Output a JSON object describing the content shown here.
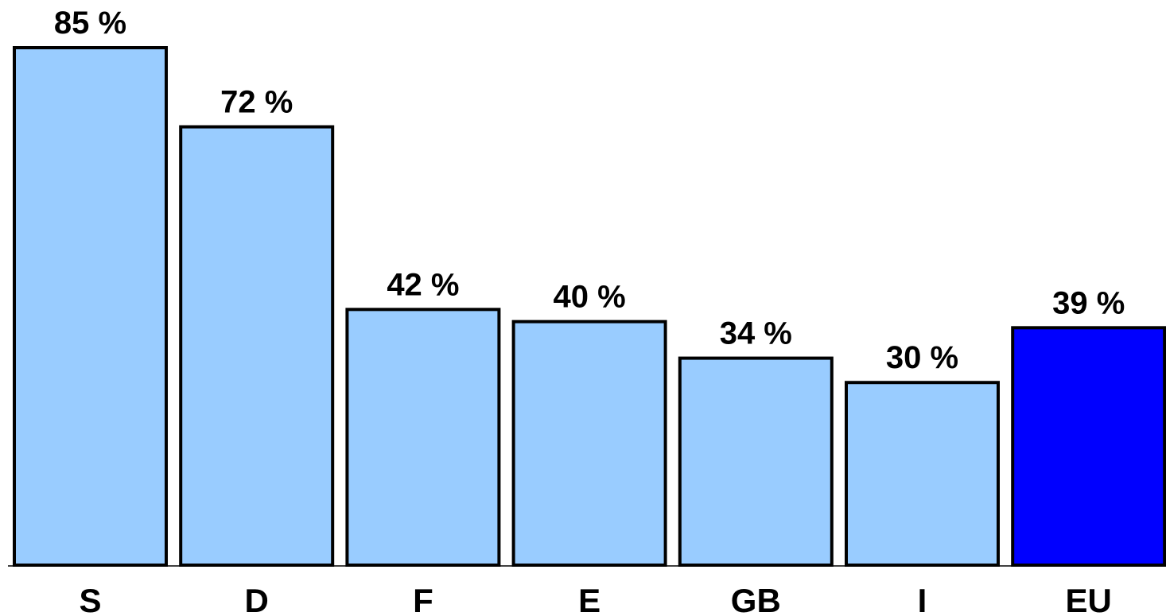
{
  "chart_data": {
    "type": "bar",
    "categories": [
      "S",
      "D",
      "F",
      "E",
      "GB",
      "I",
      "EU"
    ],
    "values": [
      85,
      72,
      42,
      40,
      34,
      30,
      39
    ],
    "data_labels": [
      "85 %",
      "72 %",
      "42 %",
      "40 %",
      "34 %",
      "30 %",
      "39 %"
    ],
    "unit": "%",
    "title": "",
    "xlabel": "",
    "ylabel": "",
    "ylim": [
      0,
      85
    ],
    "grid": false,
    "legend": "none",
    "colors": {
      "default_bar": "#99ccff",
      "highlight_bar": "#0000ff",
      "highlight_category": "EU",
      "outline": "#000000"
    }
  }
}
